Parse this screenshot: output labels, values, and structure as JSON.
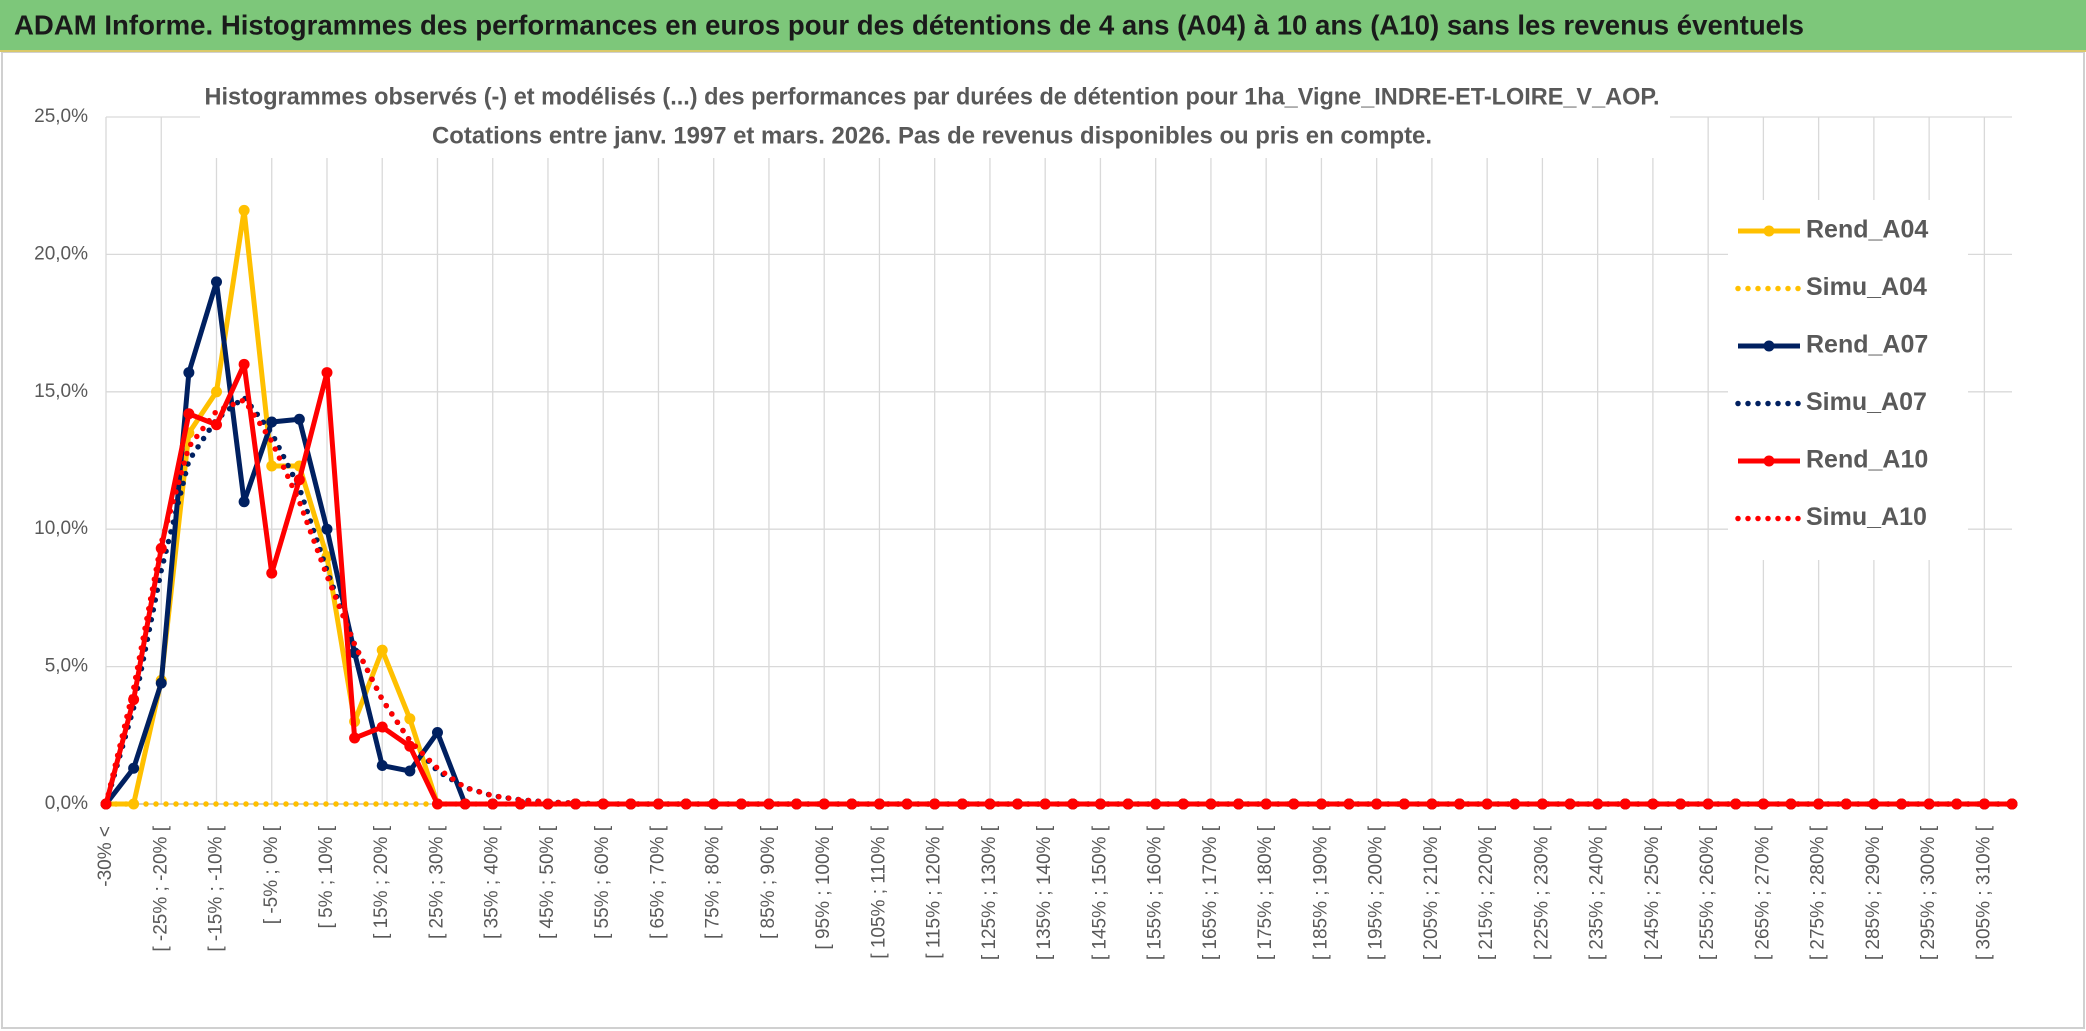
{
  "chart_data": {
    "type": "line",
    "title": "ADAM Informe. Histogrammes des performances en euros pour des détentions de 4 ans (A04) à 10 ans (A10) sans les revenus éventuels",
    "subtitle": [
      "Histogrammes observés (-) et modélisés (...) des performances par durées de détention pour 1ha_Vigne_INDRE-ET-LOIRE_V_AOP.",
      "Cotations entre janv. 1997 et mars. 2026. Pas de revenus disponibles ou pris en compte."
    ],
    "categories": [
      "-30% <",
      null,
      "[ -25% ; -20% [",
      null,
      "[ -15% ; -10% [",
      null,
      "[ -5% ; 0% [",
      null,
      "[ 5% ; 10% [",
      null,
      "[ 15% ; 20% [",
      null,
      "[ 25% ; 30% [",
      null,
      "[ 35% ; 40% [",
      null,
      "[ 45% ; 50% [",
      null,
      "[ 55% ; 60% [",
      null,
      "[ 65% ; 70% [",
      null,
      "[ 75% ; 80% [",
      null,
      "[ 85% ; 90% [",
      null,
      "[ 95% ; 100% [",
      null,
      "[ 105% ; 110% [",
      null,
      "[ 115% ; 120% [",
      null,
      "[ 125% ; 130% [",
      null,
      "[ 135% ; 140% [",
      null,
      "[ 145% ; 150% [",
      null,
      "[ 155% ; 160% [",
      null,
      "[ 165% ; 170% [",
      null,
      "[ 175% ; 180% [",
      null,
      "[ 185% ; 190% [",
      null,
      "[ 195% ; 200% [",
      null,
      "[ 205% ; 210% [",
      null,
      "[ 215% ; 220% [",
      null,
      "[ 225% ; 230% [",
      null,
      "[ 235% ; 240% [",
      null,
      "[ 245% ; 250% [",
      null,
      "[ 255% ; 260% [",
      null,
      "[ 265% ; 270% [",
      null,
      "[ 275% ; 280% [",
      null,
      "[ 285% ; 290% [",
      null,
      "[ 295% ; 300% [",
      null,
      "[ 305% ; 310% [",
      null
    ],
    "series": [
      {
        "name": "Rend_A04",
        "color": "#ffc000",
        "style": "solid",
        "markers": true,
        "values": [
          0,
          0,
          4.5,
          13.5,
          15.0,
          21.6,
          12.3,
          12.3,
          9.0,
          3.0,
          5.6,
          3.1,
          0,
          0,
          0,
          0,
          0,
          0,
          0,
          0,
          0,
          0,
          0,
          0,
          0,
          0,
          0,
          0,
          0,
          0,
          0,
          0,
          0,
          0,
          0,
          0,
          0,
          0,
          0,
          0,
          0,
          0,
          0,
          0,
          0,
          0,
          0,
          0,
          0,
          0,
          0,
          0,
          0,
          0,
          0,
          0,
          0,
          0,
          0,
          0,
          0,
          0,
          0,
          0,
          0,
          0,
          0,
          0,
          0,
          0
        ]
      },
      {
        "name": "Simu_A04",
        "color": "#ffc000",
        "style": "dotted",
        "markers": false,
        "values": [
          0,
          0,
          0,
          0,
          0,
          0,
          0,
          0,
          0,
          0,
          0,
          0,
          0,
          0,
          0,
          0,
          0,
          0,
          0,
          0,
          0,
          0,
          0,
          0,
          0,
          0,
          0,
          0,
          0,
          0,
          0,
          0,
          0,
          0,
          0,
          0,
          0,
          0,
          0,
          0,
          0,
          0,
          0,
          0,
          0,
          0,
          0,
          0,
          0,
          0,
          0,
          0,
          0,
          0,
          0,
          0,
          0,
          0,
          0,
          0,
          0,
          0,
          0,
          0,
          0,
          0,
          0,
          0,
          0,
          0
        ]
      },
      {
        "name": "Rend_A07",
        "color": "#002060",
        "style": "solid",
        "markers": true,
        "values": [
          0,
          1.3,
          4.4,
          15.7,
          19.0,
          11.0,
          13.9,
          14.0,
          10.0,
          5.5,
          1.4,
          1.2,
          2.6,
          0,
          0,
          0,
          0,
          0,
          0,
          0,
          0,
          0,
          0,
          0,
          0,
          0,
          0,
          0,
          0,
          0,
          0,
          0,
          0,
          0,
          0,
          0,
          0,
          0,
          0,
          0,
          0,
          0,
          0,
          0,
          0,
          0,
          0,
          0,
          0,
          0,
          0,
          0,
          0,
          0,
          0,
          0,
          0,
          0,
          0,
          0,
          0,
          0,
          0,
          0,
          0,
          0,
          0,
          0,
          0,
          0
        ]
      },
      {
        "name": "Simu_A07",
        "color": "#002060",
        "style": "dotted",
        "markers": false,
        "values": [
          0,
          3.5,
          8.5,
          12.5,
          14.0,
          14.8,
          13.5,
          11.5,
          8.5,
          5.8,
          3.8,
          2.3,
          1.2,
          0.6,
          0.3,
          0.15,
          0.07,
          0.03,
          0,
          0,
          0,
          0,
          0,
          0,
          0,
          0,
          0,
          0,
          0,
          0,
          0,
          0,
          0,
          0,
          0,
          0,
          0,
          0,
          0,
          0,
          0,
          0,
          0,
          0,
          0,
          0,
          0,
          0,
          0,
          0,
          0,
          0,
          0,
          0,
          0,
          0,
          0,
          0,
          0,
          0,
          0,
          0,
          0,
          0,
          0,
          0,
          0,
          0,
          0,
          0
        ]
      },
      {
        "name": "Rend_A10",
        "color": "#ff0000",
        "style": "solid",
        "markers": true,
        "values": [
          0,
          3.8,
          9.3,
          14.2,
          13.8,
          16.0,
          8.4,
          11.8,
          15.7,
          2.4,
          2.8,
          2.1,
          0,
          0,
          0,
          0,
          0,
          0,
          0,
          0,
          0,
          0,
          0,
          0,
          0,
          0,
          0,
          0,
          0,
          0,
          0,
          0,
          0,
          0,
          0,
          0,
          0,
          0,
          0,
          0,
          0,
          0,
          0,
          0,
          0,
          0,
          0,
          0,
          0,
          0,
          0,
          0,
          0,
          0,
          0,
          0,
          0,
          0,
          0,
          0,
          0,
          0,
          0,
          0,
          0,
          0,
          0,
          0,
          0,
          0
        ]
      },
      {
        "name": "Simu_A10",
        "color": "#ff0000",
        "style": "dotted",
        "markers": false,
        "values": [
          0,
          4.2,
          9.5,
          13.0,
          14.3,
          14.7,
          13.2,
          11.0,
          8.3,
          5.8,
          3.8,
          2.3,
          1.3,
          0.6,
          0.3,
          0.15,
          0.07,
          0.03,
          0,
          0,
          0,
          0,
          0,
          0,
          0,
          0,
          0,
          0,
          0,
          0,
          0,
          0,
          0,
          0,
          0,
          0,
          0,
          0,
          0,
          0,
          0,
          0,
          0,
          0,
          0,
          0,
          0,
          0,
          0,
          0,
          0,
          0,
          0,
          0,
          0,
          0,
          0,
          0,
          0,
          0,
          0,
          0,
          0,
          0,
          0,
          0,
          0,
          0,
          0,
          0
        ]
      }
    ],
    "ylim": [
      0,
      25
    ],
    "yticks": [
      {
        "value": 0,
        "label": "0,0%"
      },
      {
        "value": 5,
        "label": "5,0%"
      },
      {
        "value": 10,
        "label": "10,0%"
      },
      {
        "value": 15,
        "label": "15,0%"
      },
      {
        "value": 20,
        "label": "20,0%"
      },
      {
        "value": 25,
        "label": "25,0%"
      }
    ],
    "grid": true,
    "legend": "right"
  }
}
